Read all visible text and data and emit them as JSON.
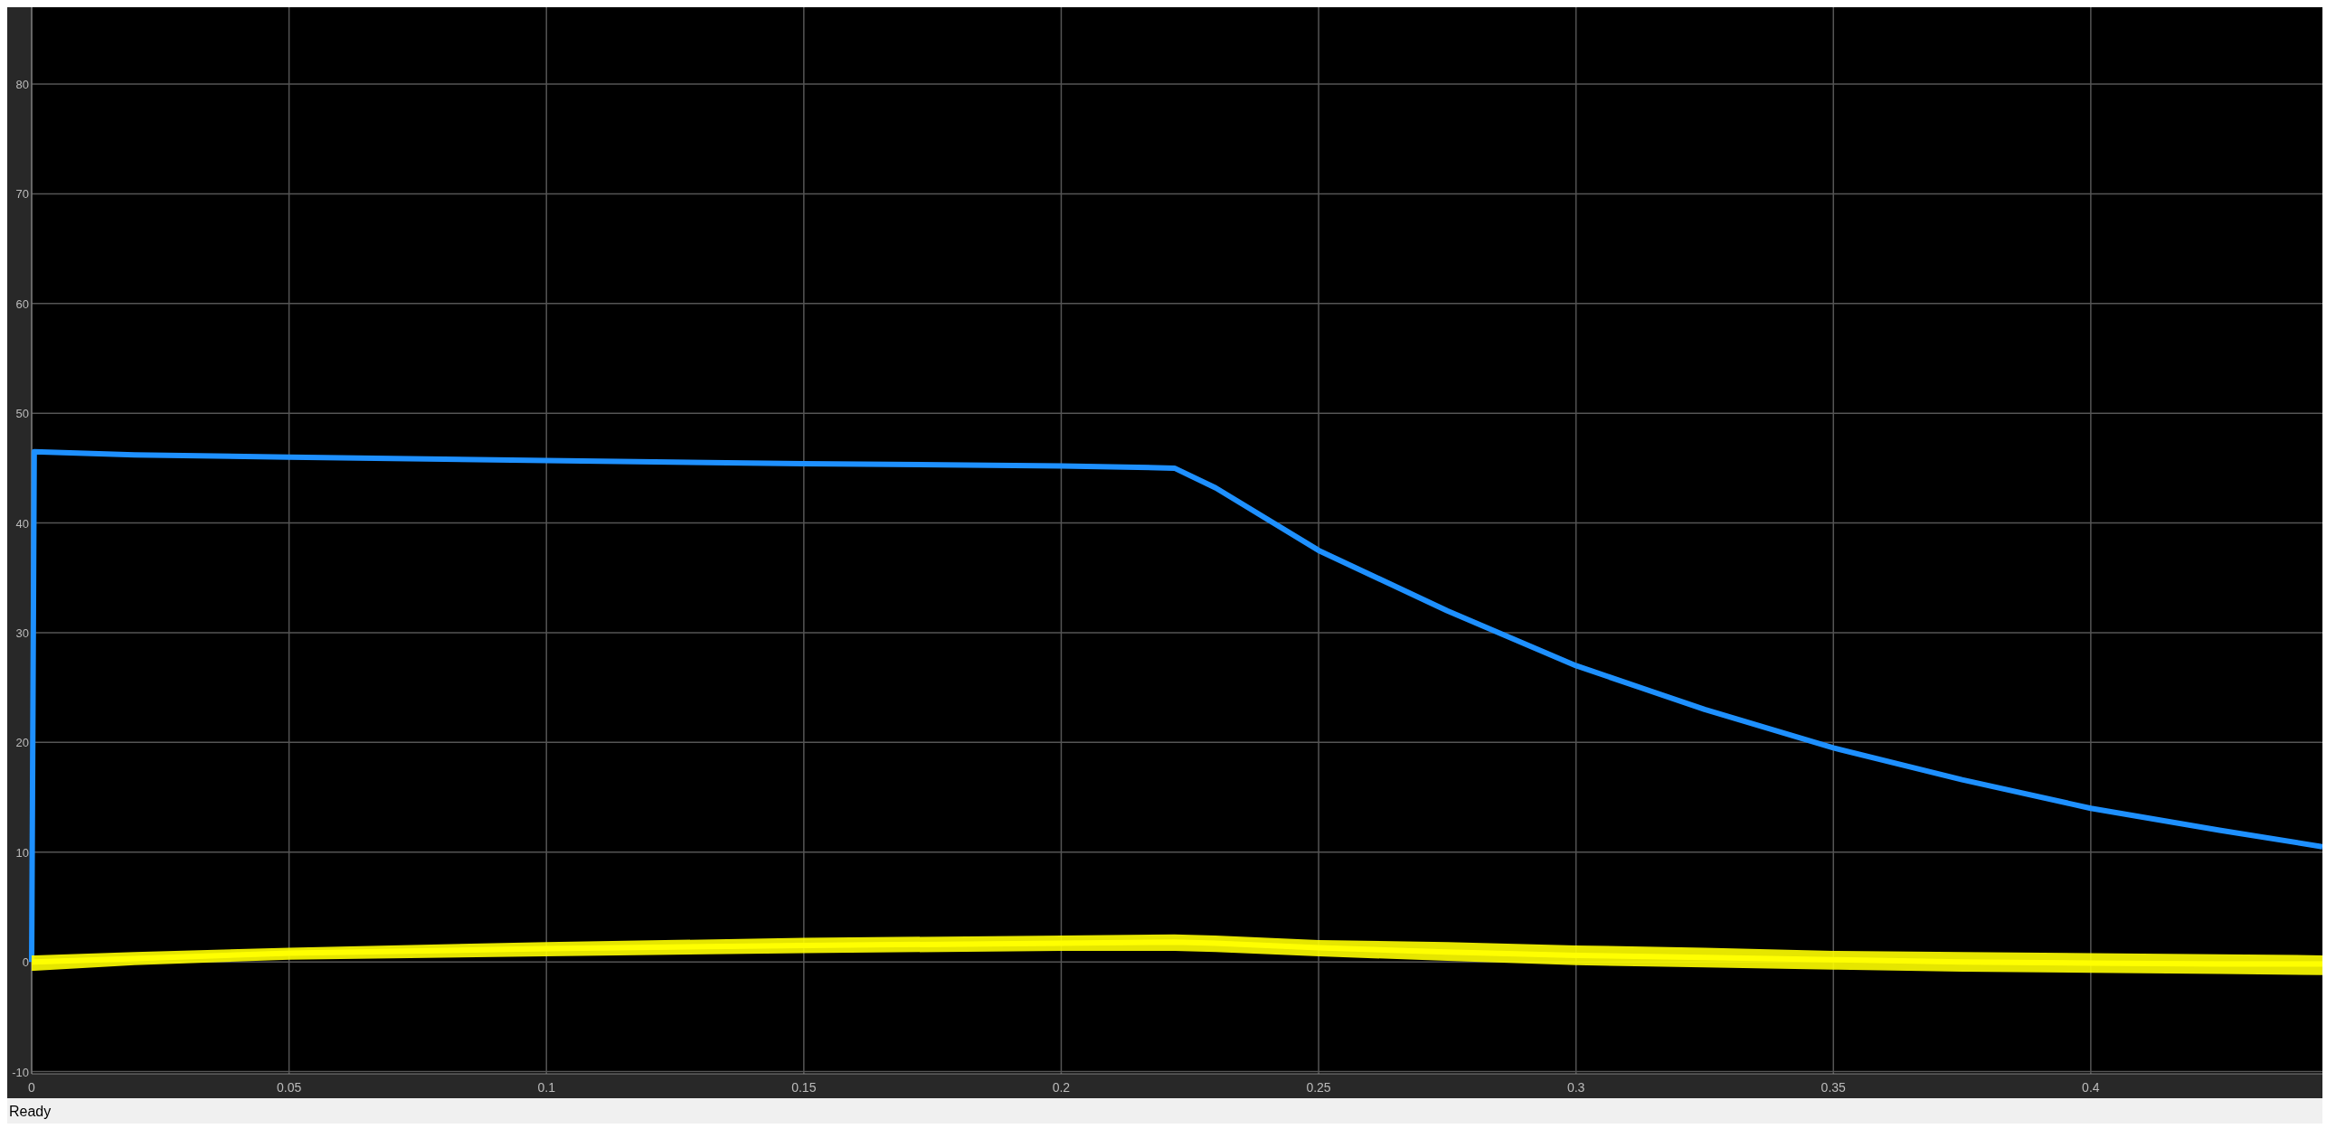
{
  "chart_data": {
    "type": "line",
    "x": [
      0,
      0.0005,
      0.02,
      0.05,
      0.1,
      0.15,
      0.2,
      0.222,
      0.23,
      0.25,
      0.275,
      0.3,
      0.325,
      0.35,
      0.375,
      0.4,
      0.425,
      0.445
    ],
    "series": [
      {
        "color": "#1e90ff",
        "values": [
          0,
          46.5,
          46.2,
          46,
          45.7,
          45.4,
          45.2,
          45,
          43.2,
          37.5,
          32,
          27,
          23,
          19.5,
          16.6,
          14,
          12,
          10.5
        ]
      },
      {
        "color": "#ffff00",
        "values": [
          0,
          0,
          0.3,
          0.8,
          1.2,
          1.5,
          1.7,
          1.8,
          1.7,
          1.3,
          0.9,
          0.6,
          0.4,
          0.2,
          0,
          -0.1,
          -0.2,
          -0.2
        ],
        "lower": [
          -0.8,
          -0.8,
          -0.3,
          0.2,
          0.5,
          0.8,
          1,
          1,
          0.9,
          0.5,
          0.1,
          -0.3,
          -0.5,
          -0.7,
          -0.9,
          -1,
          -1.1,
          -1.2
        ],
        "upper": [
          0.6,
          0.6,
          0.9,
          1.3,
          1.8,
          2.2,
          2.4,
          2.5,
          2.4,
          2,
          1.8,
          1.5,
          1.3,
          1,
          0.9,
          0.8,
          0.7,
          0.6
        ]
      }
    ],
    "xlim": [
      0,
      0.445
    ],
    "ylim": [
      -10.2,
      87
    ],
    "xticks": [
      0,
      0.05,
      0.1,
      0.15,
      0.2,
      0.25,
      0.3,
      0.35,
      0.4
    ],
    "yticks": [
      -10,
      0,
      10,
      20,
      30,
      40,
      50,
      60,
      70,
      80
    ],
    "grid": true,
    "annotations": [
      "Ready"
    ]
  }
}
